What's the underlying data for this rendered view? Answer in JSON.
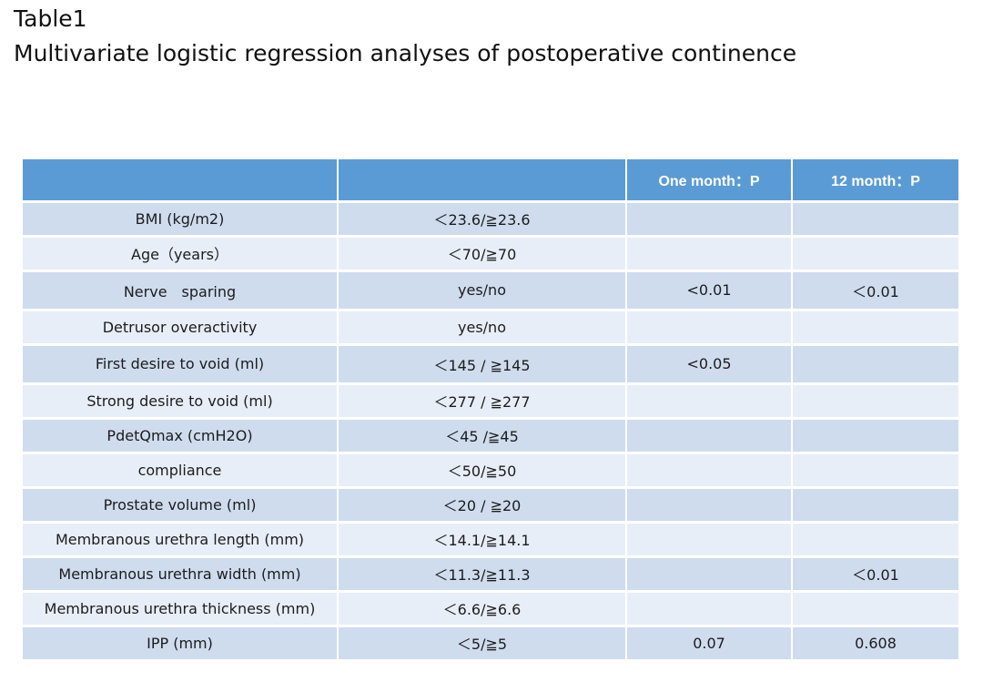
{
  "heading": {
    "label": "Table1",
    "title": "Multivariate logistic regression analyses of postoperative continence"
  },
  "table": {
    "headers": [
      "",
      "",
      "One month：P",
      "12 month：P"
    ],
    "rows": [
      [
        "BMI (kg/m2)",
        "＜23.6/≧23.6",
        "",
        ""
      ],
      [
        "Age（years）",
        "＜70/≧70",
        "",
        ""
      ],
      [
        "Nerve　sparing",
        "yes/no",
        "<0.01",
        "＜0.01"
      ],
      [
        "Detrusor overactivity",
        "yes/no",
        "",
        ""
      ],
      [
        "First desire to void (ml)",
        "＜145 / ≧145",
        "<0.05",
        ""
      ],
      [
        "Strong desire to void (ml)",
        "＜277 / ≧277",
        "",
        ""
      ],
      [
        "PdetQmax (cmH2O)",
        "＜45 /≧45",
        "",
        ""
      ],
      [
        "compliance",
        "＜50/≧50",
        "",
        ""
      ],
      [
        "Prostate volume (ml)",
        "＜20 / ≧20",
        "",
        ""
      ],
      [
        "Membranous urethra length (mm)",
        "＜14.1/≧14.1",
        "",
        ""
      ],
      [
        "Membranous urethra width (mm)",
        "＜11.3/≧11.3",
        "",
        "＜0.01"
      ],
      [
        "Membranous urethra thickness (mm)",
        "＜6.6/≧6.6",
        "",
        ""
      ],
      [
        "IPP (mm)",
        "＜5/≧5",
        "0.07",
        "0.608"
      ]
    ]
  }
}
